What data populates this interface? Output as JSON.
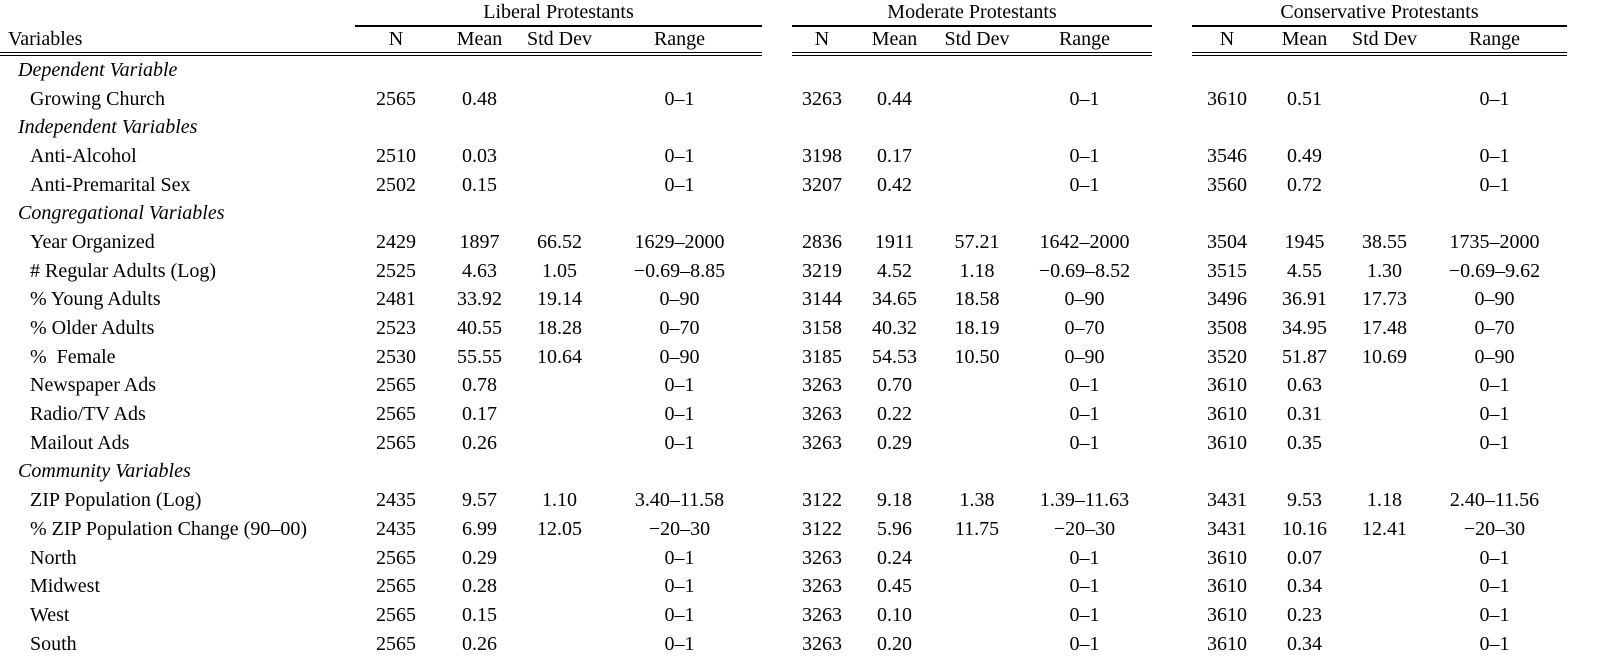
{
  "table": {
    "corner_label": "Variables",
    "groups": [
      {
        "title": "Liberal Protestants"
      },
      {
        "title": "Moderate Protestants"
      },
      {
        "title": "Conservative Protestants"
      }
    ],
    "column_labels": [
      "N",
      "Mean",
      "Std Dev",
      "Range"
    ],
    "rows": [
      {
        "type": "section",
        "label": "Dependent Variable"
      },
      {
        "type": "var",
        "label": "Growing Church",
        "cells": [
          [
            "2565",
            "0.48",
            "",
            "0–1"
          ],
          [
            "3263",
            "0.44",
            "",
            "0–1"
          ],
          [
            "3610",
            "0.51",
            "",
            "0–1"
          ]
        ]
      },
      {
        "type": "section",
        "label": "Independent Variables"
      },
      {
        "type": "var",
        "label": "Anti-Alcohol",
        "cells": [
          [
            "2510",
            "0.03",
            "",
            "0–1"
          ],
          [
            "3198",
            "0.17",
            "",
            "0–1"
          ],
          [
            "3546",
            "0.49",
            "",
            "0–1"
          ]
        ]
      },
      {
        "type": "var",
        "label": "Anti-Premarital Sex",
        "cells": [
          [
            "2502",
            "0.15",
            "",
            "0–1"
          ],
          [
            "3207",
            "0.42",
            "",
            "0–1"
          ],
          [
            "3560",
            "0.72",
            "",
            "0–1"
          ]
        ]
      },
      {
        "type": "section",
        "label": "Congregational Variables"
      },
      {
        "type": "var",
        "label": "Year Organized",
        "cells": [
          [
            "2429",
            "1897",
            "66.52",
            "1629–2000"
          ],
          [
            "2836",
            "1911",
            "57.21",
            "1642–2000"
          ],
          [
            "3504",
            "1945",
            "38.55",
            "1735–2000"
          ]
        ]
      },
      {
        "type": "var",
        "label": "# Regular Adults (Log)",
        "cells": [
          [
            "2525",
            "4.63",
            "1.05",
            "−0.69–8.85"
          ],
          [
            "3219",
            "4.52",
            "1.18",
            "−0.69–8.52"
          ],
          [
            "3515",
            "4.55",
            "1.30",
            "−0.69–9.62"
          ]
        ]
      },
      {
        "type": "var",
        "label": "% Young Adults",
        "cells": [
          [
            "2481",
            "33.92",
            "19.14",
            "0–90"
          ],
          [
            "3144",
            "34.65",
            "18.58",
            "0–90"
          ],
          [
            "3496",
            "36.91",
            "17.73",
            "0–90"
          ]
        ]
      },
      {
        "type": "var",
        "label": "% Older Adults",
        "cells": [
          [
            "2523",
            "40.55",
            "18.28",
            "0–70"
          ],
          [
            "3158",
            "40.32",
            "18.19",
            "0–70"
          ],
          [
            "3508",
            "34.95",
            "17.48",
            "0–70"
          ]
        ]
      },
      {
        "type": "var",
        "label": "%  Female",
        "cells": [
          [
            "2530",
            "55.55",
            "10.64",
            "0–90"
          ],
          [
            "3185",
            "54.53",
            "10.50",
            "0–90"
          ],
          [
            "3520",
            "51.87",
            "10.69",
            "0–90"
          ]
        ]
      },
      {
        "type": "var",
        "label": "Newspaper Ads",
        "cells": [
          [
            "2565",
            "0.78",
            "",
            "0–1"
          ],
          [
            "3263",
            "0.70",
            "",
            "0–1"
          ],
          [
            "3610",
            "0.63",
            "",
            "0–1"
          ]
        ]
      },
      {
        "type": "var",
        "label": "Radio/TV Ads",
        "cells": [
          [
            "2565",
            "0.17",
            "",
            "0–1"
          ],
          [
            "3263",
            "0.22",
            "",
            "0–1"
          ],
          [
            "3610",
            "0.31",
            "",
            "0–1"
          ]
        ]
      },
      {
        "type": "var",
        "label": "Mailout Ads",
        "cells": [
          [
            "2565",
            "0.26",
            "",
            "0–1"
          ],
          [
            "3263",
            "0.29",
            "",
            "0–1"
          ],
          [
            "3610",
            "0.35",
            "",
            "0–1"
          ]
        ]
      },
      {
        "type": "section",
        "label": "Community Variables"
      },
      {
        "type": "var",
        "label": "ZIP Population (Log)",
        "cells": [
          [
            "2435",
            "9.57",
            "1.10",
            "3.40–11.58"
          ],
          [
            "3122",
            "9.18",
            "1.38",
            "1.39–11.63"
          ],
          [
            "3431",
            "9.53",
            "1.18",
            "2.40–11.56"
          ]
        ]
      },
      {
        "type": "var",
        "label": "% ZIP Population Change (90–00)",
        "cells": [
          [
            "2435",
            "6.99",
            "12.05",
            "−20–30"
          ],
          [
            "3122",
            "5.96",
            "11.75",
            "−20–30"
          ],
          [
            "3431",
            "10.16",
            "12.41",
            "−20–30"
          ]
        ]
      },
      {
        "type": "var",
        "label": "North",
        "cells": [
          [
            "2565",
            "0.29",
            "",
            "0–1"
          ],
          [
            "3263",
            "0.24",
            "",
            "0–1"
          ],
          [
            "3610",
            "0.07",
            "",
            "0–1"
          ]
        ]
      },
      {
        "type": "var",
        "label": "Midwest",
        "cells": [
          [
            "2565",
            "0.28",
            "",
            "0–1"
          ],
          [
            "3263",
            "0.45",
            "",
            "0–1"
          ],
          [
            "3610",
            "0.34",
            "",
            "0–1"
          ]
        ]
      },
      {
        "type": "var",
        "label": "West",
        "cells": [
          [
            "2565",
            "0.15",
            "",
            "0–1"
          ],
          [
            "3263",
            "0.10",
            "",
            "0–1"
          ],
          [
            "3610",
            "0.23",
            "",
            "0–1"
          ]
        ]
      },
      {
        "type": "var",
        "label": "South",
        "cells": [
          [
            "2565",
            "0.26",
            "",
            "0–1"
          ],
          [
            "3263",
            "0.20",
            "",
            "0–1"
          ],
          [
            "3610",
            "0.34",
            "",
            "0–1"
          ]
        ]
      }
    ]
  }
}
